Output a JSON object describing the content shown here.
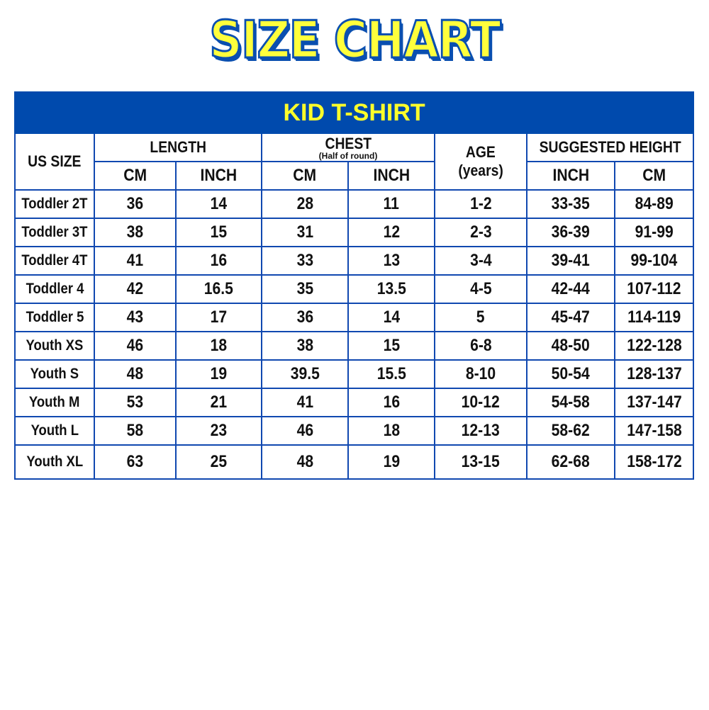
{
  "title": "SIZE CHART",
  "table": {
    "banner": "KID T-SHIRT",
    "headers": {
      "us_size": "US SIZE",
      "length": "LENGTH",
      "chest": "CHEST",
      "chest_note": "(Half of round)",
      "age": "AGE",
      "age_unit": "(years)",
      "suggested_height": "SUGGESTED HEIGHT",
      "length_cm": "CM",
      "length_inch": "INCH",
      "chest_cm": "CM",
      "chest_inch": "INCH",
      "height_inch": "INCH",
      "height_cm": "CM"
    },
    "rows": [
      [
        "Toddler 2T",
        "36",
        "14",
        "28",
        "11",
        "1-2",
        "33-35",
        "84-89"
      ],
      [
        "Toddler 3T",
        "38",
        "15",
        "31",
        "12",
        "2-3",
        "36-39",
        "91-99"
      ],
      [
        "Toddler 4T",
        "41",
        "16",
        "33",
        "13",
        "3-4",
        "39-41",
        "99-104"
      ],
      [
        "Toddler 4",
        "42",
        "16.5",
        "35",
        "13.5",
        "4-5",
        "42-44",
        "107-112"
      ],
      [
        "Toddler 5",
        "43",
        "17",
        "36",
        "14",
        "5",
        "45-47",
        "114-119"
      ],
      [
        "Youth XS",
        "46",
        "18",
        "38",
        "15",
        "6-8",
        "48-50",
        "122-128"
      ],
      [
        "Youth S",
        "48",
        "19",
        "39.5",
        "15.5",
        "8-10",
        "50-54",
        "128-137"
      ],
      [
        "Youth M",
        "53",
        "21",
        "41",
        "16",
        "10-12",
        "54-58",
        "137-147"
      ],
      [
        "Youth L",
        "58",
        "23",
        "46",
        "18",
        "12-13",
        "58-62",
        "147-158"
      ],
      [
        "Youth XL",
        "63",
        "25",
        "48",
        "19",
        "13-15",
        "62-68",
        "158-172"
      ]
    ]
  }
}
